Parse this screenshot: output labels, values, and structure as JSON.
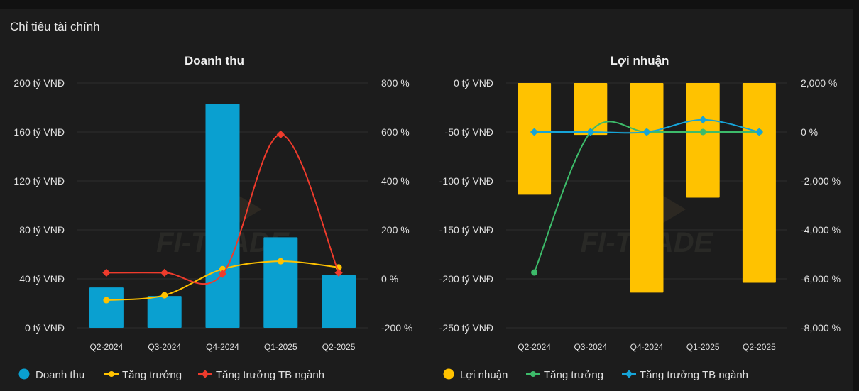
{
  "panel": {
    "title": "Chỉ tiêu tài chính"
  },
  "chart_data": [
    {
      "type": "bar",
      "title": "Doanh thu",
      "categories": [
        "Q2-2024",
        "Q3-2024",
        "Q4-2024",
        "Q1-2025",
        "Q2-2025"
      ],
      "bar_series": {
        "name": "Doanh thu",
        "values": [
          33,
          26,
          183,
          74,
          43
        ],
        "color": "#0aa0d0"
      },
      "line_series": [
        {
          "name": "Tăng trưởng",
          "values": [
            -87,
            -67,
            40,
            72,
            47
          ],
          "color": "#ffc200",
          "smooth": true
        },
        {
          "name": "Tăng trưởng TB ngành",
          "values": [
            25,
            25,
            20,
            590,
            25
          ],
          "color": "#ef3b2c",
          "smooth": true
        }
      ],
      "y_left": {
        "min": 0,
        "max": 200,
        "ticks": [
          0,
          40,
          80,
          120,
          160,
          200
        ],
        "tick_labels": [
          "0 tỷ VNĐ",
          "40 tỷ VNĐ",
          "80 tỷ VNĐ",
          "120 tỷ VNĐ",
          "160 tỷ VNĐ",
          "200 tỷ VNĐ"
        ]
      },
      "y_right": {
        "min": -200,
        "max": 800,
        "ticks": [
          -200,
          0,
          200,
          400,
          600,
          800
        ],
        "tick_labels": [
          "-200 %",
          "0 %",
          "200 %",
          "400 %",
          "600 %",
          "800 %"
        ]
      },
      "legend": [
        "Doanh thu",
        "Tăng trưởng",
        "Tăng trưởng TB ngành"
      ],
      "legend_position": "bottom"
    },
    {
      "type": "bar",
      "title": "Lợi nhuận",
      "categories": [
        "Q2-2024",
        "Q3-2024",
        "Q4-2024",
        "Q1-2025",
        "Q2-2025"
      ],
      "bar_series": {
        "name": "Lợi nhuận",
        "values": [
          -114,
          -53,
          -214,
          -117,
          -204
        ],
        "color": "#ffc200"
      },
      "line_series": [
        {
          "name": "Tăng trưởng",
          "values": [
            -5740,
            0,
            0,
            0,
            0
          ],
          "color": "#3dbb6a",
          "smooth": true
        },
        {
          "name": "Tăng trưởng TB ngành",
          "values": [
            0,
            0,
            0,
            500,
            0
          ],
          "color": "#16a4d8",
          "smooth": true
        }
      ],
      "y_left": {
        "min": -250,
        "max": 0,
        "ticks": [
          -250,
          -200,
          -150,
          -100,
          -50,
          0
        ],
        "tick_labels": [
          "-250 tỷ VNĐ",
          "-200 tỷ VNĐ",
          "-150 tỷ VNĐ",
          "-100 tỷ VNĐ",
          "-50 tỷ VNĐ",
          "0 tỷ VNĐ"
        ]
      },
      "y_right": {
        "min": -8000,
        "max": 2000,
        "ticks": [
          -8000,
          -6000,
          -4000,
          -2000,
          0,
          2000
        ],
        "tick_labels": [
          "-8,000 %",
          "-6,000 %",
          "-4,000 %",
          "-2,000 %",
          "0 %",
          "2,000 %"
        ]
      },
      "legend": [
        "Lợi nhuận",
        "Tăng trưởng",
        "Tăng trưởng TB ngành"
      ],
      "legend_position": "bottom"
    }
  ]
}
